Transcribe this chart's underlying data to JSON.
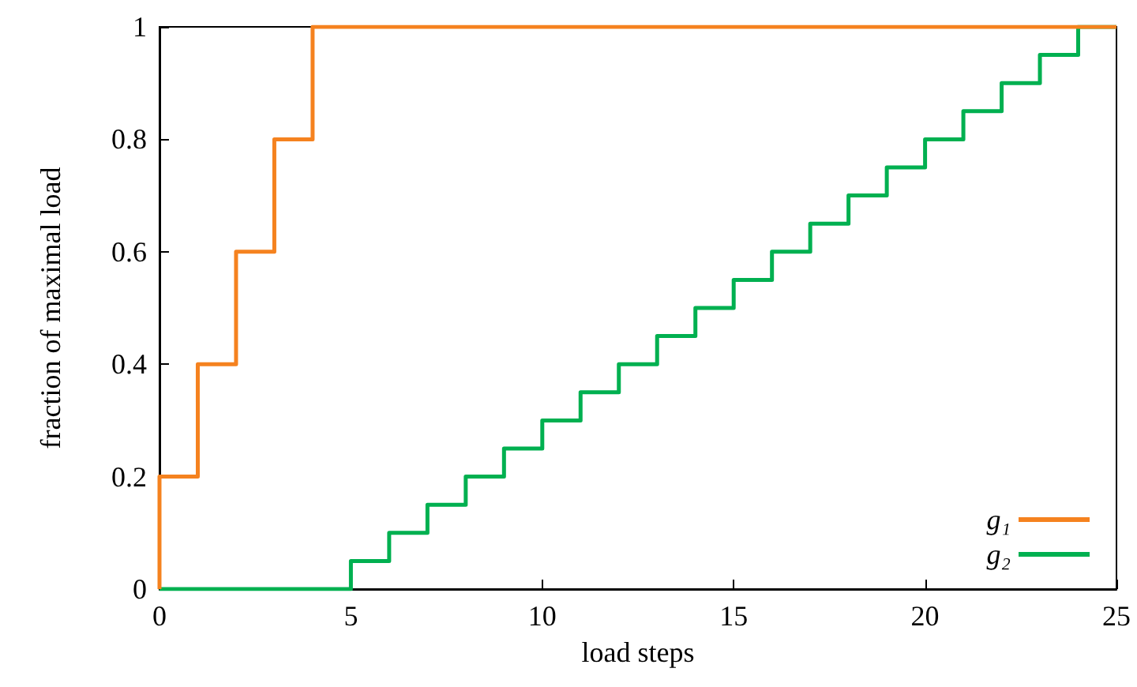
{
  "chart_data": {
    "type": "step",
    "xlabel": "load steps",
    "ylabel": "fraction of maximal load",
    "series": [
      {
        "name": "g₁",
        "color": "#f5821f",
        "x": [
          0,
          0,
          1,
          2,
          3,
          4,
          25
        ],
        "values": [
          0,
          0.2,
          0.4,
          0.6,
          0.8,
          1,
          1
        ]
      },
      {
        "name": "g₂",
        "color": "#00b050",
        "x": [
          0,
          5,
          6,
          7,
          8,
          9,
          10,
          11,
          12,
          13,
          14,
          15,
          16,
          17,
          18,
          19,
          20,
          21,
          22,
          23,
          24,
          25
        ],
        "values": [
          0,
          0.05,
          0.1,
          0.15,
          0.2,
          0.25,
          0.3,
          0.35,
          0.4,
          0.45,
          0.5,
          0.55,
          0.6,
          0.65,
          0.7,
          0.75,
          0.8,
          0.85,
          0.9,
          0.95,
          1,
          1
        ]
      }
    ],
    "xlim": [
      0,
      25
    ],
    "xticks": [
      0,
      5,
      10,
      15,
      20,
      25
    ],
    "ylim": [
      0,
      1
    ],
    "yticks": [
      0,
      0.2,
      0.4,
      0.6,
      0.8,
      1
    ],
    "grid": false,
    "legend": "bottom right",
    "marker": "none",
    "line_style": "solid"
  }
}
